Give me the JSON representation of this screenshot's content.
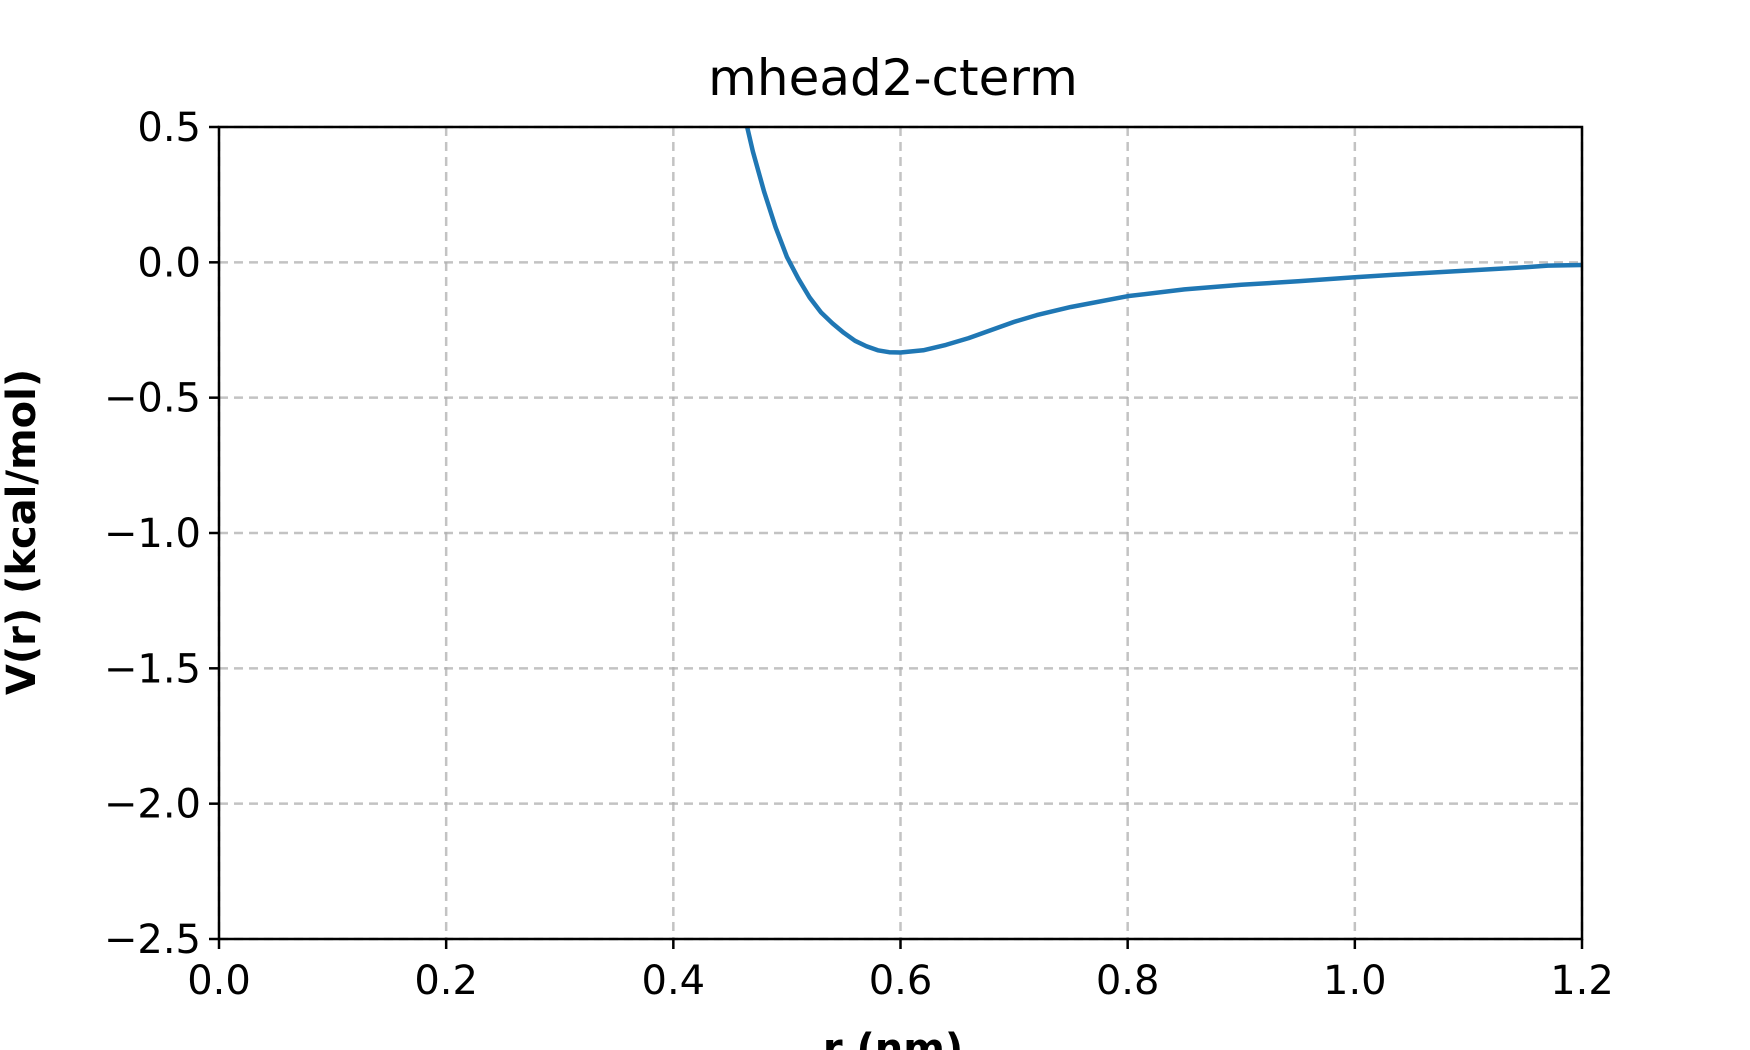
{
  "chart_data": {
    "type": "line",
    "title": "mhead2-cterm",
    "xlabel": "r (nm)",
    "ylabel": "V(r) (kcal/mol)",
    "xlim": [
      0.0,
      1.2
    ],
    "ylim": [
      -2.5,
      0.5
    ],
    "xticks": [
      0.0,
      0.2,
      0.4,
      0.6,
      0.8,
      1.0,
      1.2
    ],
    "xtick_labels": [
      "0.0",
      "0.2",
      "0.4",
      "0.6",
      "0.8",
      "1.0",
      "1.2"
    ],
    "yticks": [
      0.5,
      0.0,
      -0.5,
      -1.0,
      -1.5,
      -2.0,
      -2.5
    ],
    "ytick_labels": [
      "0.5",
      "0.0",
      "−0.5",
      "−1.0",
      "−1.5",
      "−2.0",
      "−2.5"
    ],
    "grid": true,
    "grid_style": "dashed",
    "line_color": "#1f77b4",
    "series": [
      {
        "x": [
          0.44,
          0.45,
          0.46,
          0.465,
          0.47,
          0.48,
          0.49,
          0.5,
          0.51,
          0.52,
          0.53,
          0.54,
          0.55,
          0.56,
          0.57,
          0.58,
          0.59,
          0.6,
          0.62,
          0.64,
          0.66,
          0.68,
          0.7,
          0.72,
          0.75,
          0.8,
          0.85,
          0.9,
          0.95,
          1.0,
          1.05,
          1.1,
          1.15,
          1.17,
          1.2
        ],
        "y": [
          0.9,
          0.75,
          0.62,
          0.5,
          0.41,
          0.26,
          0.13,
          0.02,
          -0.06,
          -0.13,
          -0.185,
          -0.225,
          -0.26,
          -0.29,
          -0.31,
          -0.325,
          -0.332,
          -0.333,
          -0.325,
          -0.305,
          -0.28,
          -0.25,
          -0.22,
          -0.195,
          -0.165,
          -0.125,
          -0.1,
          -0.083,
          -0.07,
          -0.055,
          -0.042,
          -0.03,
          -0.018,
          -0.012,
          -0.01
        ]
      }
    ]
  }
}
